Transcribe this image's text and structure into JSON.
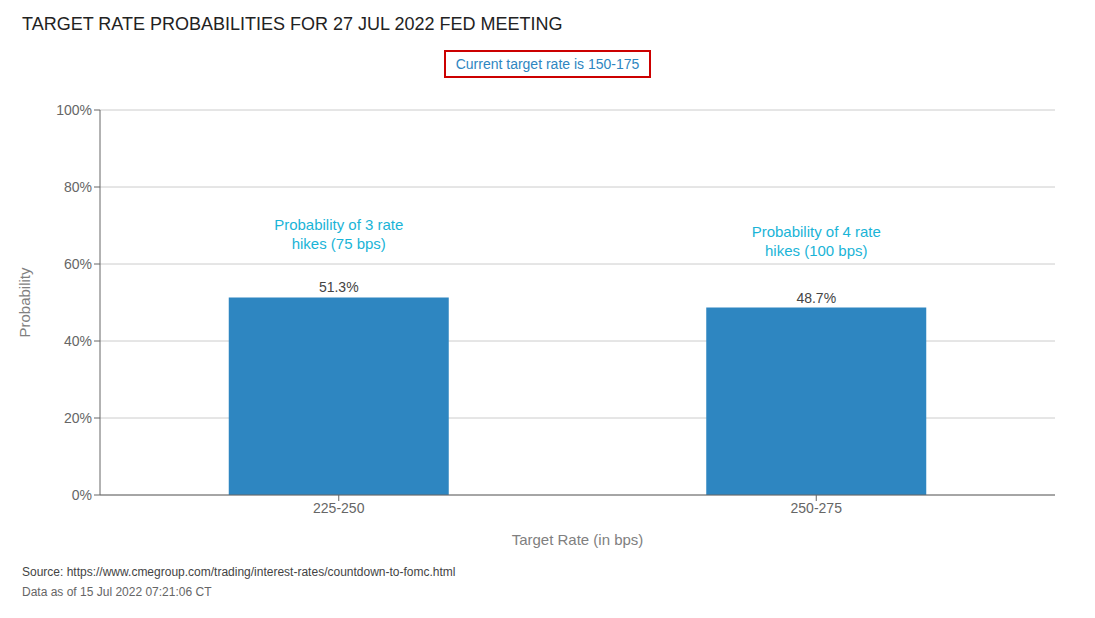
{
  "chart_data": {
    "type": "bar",
    "title": "TARGET RATE PROBABILITIES FOR 27 JUL 2022 FED MEETING",
    "subtitle": "Current target rate is 150-175",
    "categories": [
      "225-250",
      "250-275"
    ],
    "values": [
      51.3,
      48.7
    ],
    "value_labels": [
      "51.3%",
      "48.7%"
    ],
    "data_labels": true,
    "color": "#2e86c1",
    "xlabel": "Target Rate (in bps)",
    "ylabel": "Probability",
    "ylim": [
      0,
      100
    ],
    "yticks": [
      {
        "value": 0,
        "label": "0%"
      },
      {
        "value": 20,
        "label": "20%"
      },
      {
        "value": 40,
        "label": "40%"
      },
      {
        "value": 60,
        "label": "60%"
      },
      {
        "value": 80,
        "label": "80%"
      },
      {
        "value": 100,
        "label": "100%"
      }
    ],
    "grid": true,
    "annotations": [
      {
        "category": "225-250",
        "y": 64,
        "text": [
          "Probability of 3 rate",
          "hikes (75 bps)"
        ]
      },
      {
        "category": "250-275",
        "y": 62,
        "text": [
          "Probability of 4 rate",
          "hikes (100 bps)"
        ]
      }
    ],
    "source": "Source: https://www.cmegroup.com/trading/interest-rates/countdown-to-fomc.html",
    "footnote": "Data as of 15 Jul 2022 07:21:06 CT"
  }
}
